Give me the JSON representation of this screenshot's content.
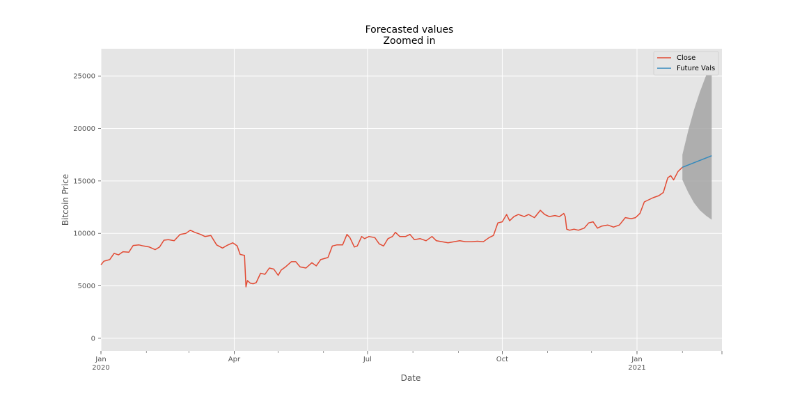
{
  "chart_data": {
    "type": "line",
    "title_line1": "Forecasted values",
    "title_line2": "Zoomed in",
    "xlabel": "Date",
    "ylabel": "Bitcoin Price",
    "xlim": [
      "2020-01-01",
      "2021-02-28"
    ],
    "ylim": [
      -1200,
      27600
    ],
    "grid": true,
    "legend_position": "top-right",
    "x_ticks": [
      {
        "date": "2020-01-01",
        "label": "Jan",
        "sublabel": "2020"
      },
      {
        "date": "2020-04-01",
        "label": "Apr",
        "sublabel": ""
      },
      {
        "date": "2020-07-01",
        "label": "Jul",
        "sublabel": ""
      },
      {
        "date": "2020-10-01",
        "label": "Oct",
        "sublabel": ""
      },
      {
        "date": "2021-01-01",
        "label": "Jan",
        "sublabel": "2021"
      }
    ],
    "y_ticks": [
      0,
      5000,
      10000,
      15000,
      20000,
      25000
    ],
    "colors": {
      "close": "#e24a33",
      "future": "#348abd",
      "band": "#a5a5a5",
      "plot_bg": "#e5e5e5",
      "grid": "#ffffff"
    },
    "series": [
      {
        "name": "Close",
        "points": [
          [
            "2020-01-01",
            7000
          ],
          [
            "2020-01-03",
            7350
          ],
          [
            "2020-01-07",
            7500
          ],
          [
            "2020-01-10",
            8100
          ],
          [
            "2020-01-13",
            7950
          ],
          [
            "2020-01-16",
            8250
          ],
          [
            "2020-01-20",
            8200
          ],
          [
            "2020-01-23",
            8850
          ],
          [
            "2020-01-27",
            8900
          ],
          [
            "2020-01-30",
            8800
          ],
          [
            "2020-02-03",
            8700
          ],
          [
            "2020-02-07",
            8450
          ],
          [
            "2020-02-10",
            8700
          ],
          [
            "2020-02-13",
            9350
          ],
          [
            "2020-02-16",
            9400
          ],
          [
            "2020-02-20",
            9300
          ],
          [
            "2020-02-24",
            9900
          ],
          [
            "2020-02-28",
            10000
          ],
          [
            "2020-03-02",
            10300
          ],
          [
            "2020-03-05",
            10100
          ],
          [
            "2020-03-09",
            9900
          ],
          [
            "2020-03-12",
            9700
          ],
          [
            "2020-03-16",
            9800
          ],
          [
            "2020-03-20",
            8900
          ],
          [
            "2020-03-24",
            8600
          ],
          [
            "2020-03-27",
            8850
          ],
          [
            "2020-03-31",
            9100
          ],
          [
            "2020-04-03",
            8800
          ],
          [
            "2020-04-05",
            8000
          ],
          [
            "2020-04-08",
            7900
          ],
          [
            "2020-04-09",
            4900
          ],
          [
            "2020-04-10",
            5500
          ],
          [
            "2020-04-12",
            5250
          ],
          [
            "2020-04-14",
            5200
          ],
          [
            "2020-04-16",
            5300
          ],
          [
            "2020-04-19",
            6200
          ],
          [
            "2020-04-22",
            6100
          ],
          [
            "2020-04-25",
            6700
          ],
          [
            "2020-04-28",
            6600
          ],
          [
            "2020-05-01",
            6000
          ],
          [
            "2020-05-03",
            6500
          ],
          [
            "2020-05-06",
            6800
          ],
          [
            "2020-05-10",
            7300
          ],
          [
            "2020-05-13",
            7300
          ],
          [
            "2020-05-16",
            6800
          ],
          [
            "2020-05-20",
            6700
          ],
          [
            "2020-05-24",
            7200
          ],
          [
            "2020-05-27",
            6900
          ],
          [
            "2020-05-30",
            7500
          ],
          [
            "2020-06-04",
            7700
          ],
          [
            "2020-06-07",
            8800
          ],
          [
            "2020-06-10",
            8900
          ],
          [
            "2020-06-14",
            8900
          ],
          [
            "2020-06-17",
            9900
          ],
          [
            "2020-06-19",
            9600
          ],
          [
            "2020-06-22",
            8700
          ],
          [
            "2020-06-24",
            8800
          ],
          [
            "2020-06-27",
            9700
          ],
          [
            "2020-06-29",
            9500
          ],
          [
            "2020-07-02",
            9700
          ],
          [
            "2020-07-06",
            9600
          ],
          [
            "2020-07-09",
            9000
          ],
          [
            "2020-07-12",
            8800
          ],
          [
            "2020-07-15",
            9500
          ],
          [
            "2020-07-18",
            9700
          ],
          [
            "2020-07-20",
            10100
          ],
          [
            "2020-07-23",
            9700
          ],
          [
            "2020-07-27",
            9700
          ],
          [
            "2020-07-30",
            9900
          ],
          [
            "2020-08-02",
            9400
          ],
          [
            "2020-08-06",
            9500
          ],
          [
            "2020-08-10",
            9300
          ],
          [
            "2020-08-14",
            9700
          ],
          [
            "2020-08-17",
            9300
          ],
          [
            "2020-08-21",
            9200
          ],
          [
            "2020-08-25",
            9100
          ],
          [
            "2020-08-29",
            9200
          ],
          [
            "2020-09-02",
            9300
          ],
          [
            "2020-09-06",
            9200
          ],
          [
            "2020-09-10",
            9200
          ],
          [
            "2020-09-14",
            9250
          ],
          [
            "2020-09-18",
            9200
          ],
          [
            "2020-09-22",
            9600
          ],
          [
            "2020-09-25",
            9800
          ],
          [
            "2020-09-28",
            11000
          ],
          [
            "2020-10-01",
            11100
          ],
          [
            "2020-10-04",
            11800
          ],
          [
            "2020-10-06",
            11200
          ],
          [
            "2020-10-09",
            11600
          ],
          [
            "2020-10-12",
            11800
          ],
          [
            "2020-10-16",
            11600
          ],
          [
            "2020-10-19",
            11800
          ],
          [
            "2020-10-23",
            11500
          ],
          [
            "2020-10-27",
            12200
          ],
          [
            "2020-10-30",
            11800
          ],
          [
            "2020-11-02",
            11600
          ],
          [
            "2020-11-06",
            11700
          ],
          [
            "2020-11-09",
            11600
          ],
          [
            "2020-11-12",
            11900
          ],
          [
            "2020-11-13",
            11600
          ],
          [
            "2020-11-14",
            10400
          ],
          [
            "2020-11-16",
            10300
          ],
          [
            "2020-11-19",
            10400
          ],
          [
            "2020-11-22",
            10300
          ],
          [
            "2020-11-26",
            10500
          ],
          [
            "2020-11-29",
            11000
          ],
          [
            "2020-12-02",
            11100
          ],
          [
            "2020-12-05",
            10500
          ],
          [
            "2020-12-08",
            10700
          ],
          [
            "2020-12-12",
            10800
          ],
          [
            "2020-12-16",
            10600
          ],
          [
            "2020-12-20",
            10800
          ],
          [
            "2020-12-24",
            11500
          ],
          [
            "2020-12-28",
            11400
          ],
          [
            "2020-12-31",
            11500
          ],
          [
            "2021-01-03",
            11900
          ],
          [
            "2021-01-06",
            13000
          ],
          [
            "2021-01-09",
            13200
          ],
          [
            "2021-01-12",
            13400
          ],
          [
            "2021-01-16",
            13600
          ],
          [
            "2021-01-19",
            13900
          ],
          [
            "2021-01-22",
            15300
          ],
          [
            "2021-01-24",
            15500
          ],
          [
            "2021-01-26",
            15100
          ],
          [
            "2021-01-29",
            15900
          ],
          [
            "2021-02-01",
            16300
          ]
        ]
      },
      {
        "name": "Future Vals",
        "points": [
          [
            "2021-02-01",
            16300
          ],
          [
            "2021-02-21",
            17400
          ]
        ]
      }
    ],
    "confidence_band": {
      "x": [
        "2021-02-01",
        "2021-02-05",
        "2021-02-09",
        "2021-02-13",
        "2021-02-17",
        "2021-02-21"
      ],
      "upper": [
        17500,
        19800,
        21800,
        23500,
        25000,
        26400
      ],
      "lower": [
        15100,
        13900,
        12900,
        12200,
        11700,
        11300
      ]
    }
  }
}
